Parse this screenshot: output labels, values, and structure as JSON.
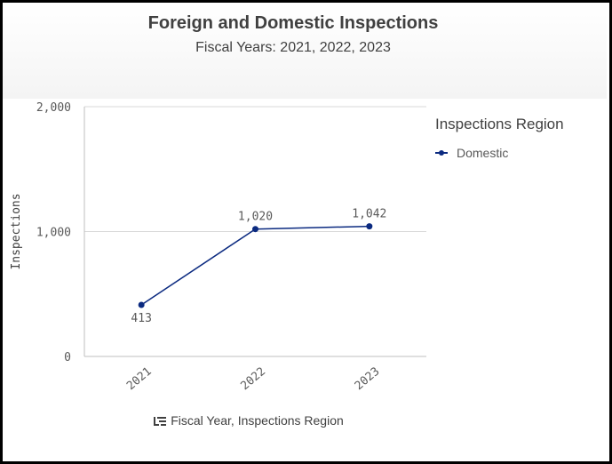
{
  "header": {
    "title": "Foreign and Domestic Inspections",
    "subtitle": "Fiscal Years: 2021, 2022, 2023"
  },
  "legend": {
    "title": "Inspections Region",
    "items": [
      {
        "label": "Domestic",
        "color": "#0b2a80"
      }
    ]
  },
  "footer": {
    "icon": "drill-down-icon",
    "label": "Fiscal Year, Inspections Region"
  },
  "chart_data": {
    "type": "line",
    "title": "Foreign and Domestic Inspections",
    "subtitle": "Fiscal Years: 2021, 2022, 2023",
    "xlabel": "",
    "ylabel": "Inspections",
    "categories": [
      "2021",
      "2022",
      "2023"
    ],
    "series": [
      {
        "name": "Domestic",
        "values": [
          413,
          1020,
          1042
        ],
        "data_labels": [
          "413",
          "1,020",
          "1,042"
        ],
        "color": "#0b2a80"
      }
    ],
    "ylim": [
      0,
      2000
    ],
    "yticks": [
      0,
      1000,
      2000
    ],
    "ytick_labels": [
      "0",
      "1,000",
      "2,000"
    ],
    "grid": true,
    "legend_position": "right"
  }
}
